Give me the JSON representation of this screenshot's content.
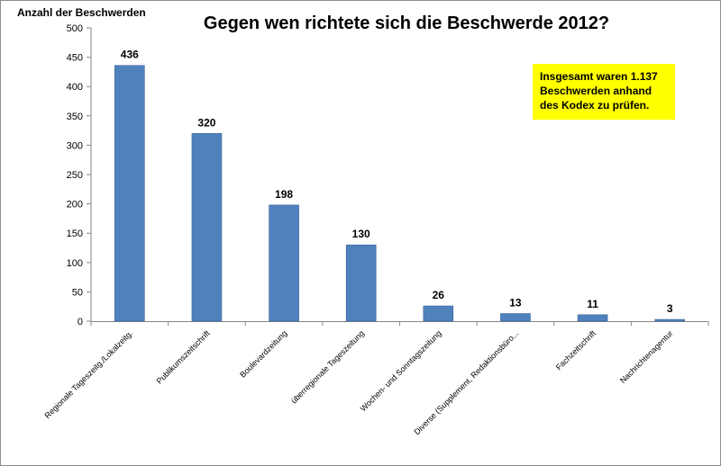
{
  "chart_data": {
    "type": "bar",
    "title": "Gegen wen richtete sich die Beschwerde 2012?",
    "ylabel": "Anzahl der Beschwerden",
    "xlabel": "",
    "ylim": [
      0,
      500
    ],
    "yticks": [
      0,
      50,
      100,
      150,
      200,
      250,
      300,
      350,
      400,
      450,
      500
    ],
    "categories": [
      "Regionale Tageszeitg./Lokalzeitg.",
      "Publikumszeitschrift",
      "Boulevardzeitung",
      "überregionale Tageszeitung",
      "Wochen- und Sonntagszeitung",
      "Diverse (Supplement, Redaktionsbüro...",
      "Fachzeitschrift",
      "Nachrichtenagentur"
    ],
    "values": [
      436,
      320,
      198,
      130,
      26,
      13,
      11,
      3
    ],
    "bar_color": "#4f81bd",
    "grid": false,
    "annotation": "Insgesamt waren 1.137 Beschwerden anhand des Kodex zu prüfen.",
    "annotation_color": "#ffff00"
  }
}
